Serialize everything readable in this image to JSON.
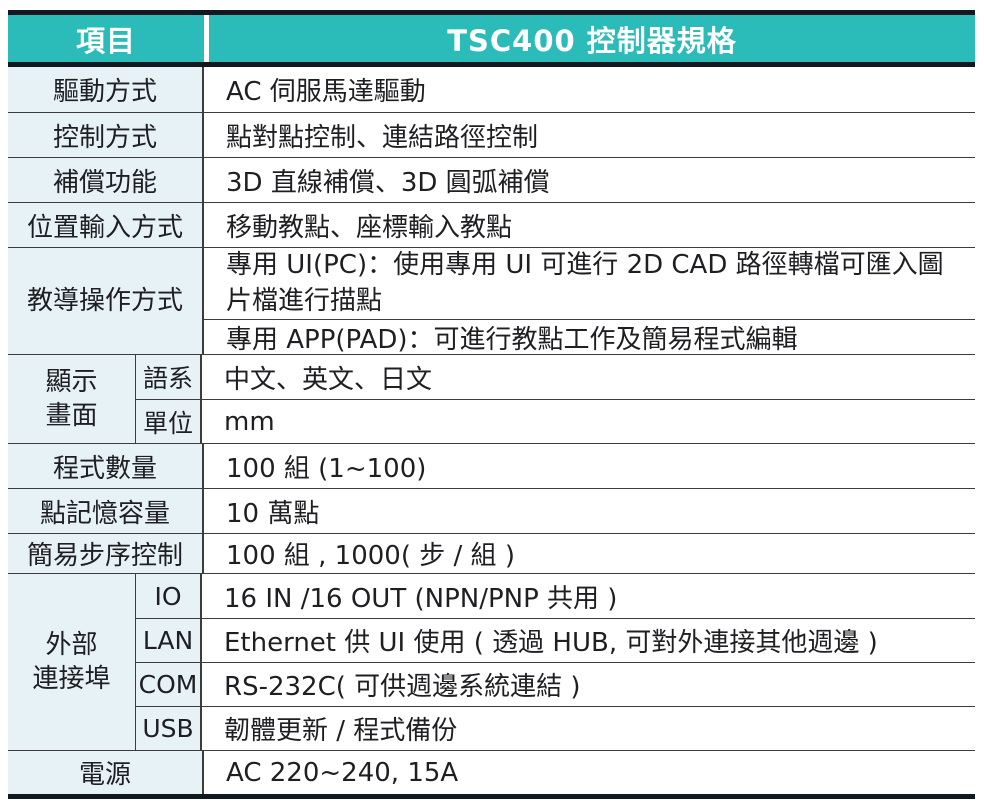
{
  "table": {
    "header": {
      "items_label": "項目",
      "title": "TSC400 控制器規格"
    },
    "rows": {
      "drive": {
        "label": "驅動方式",
        "value": "AC 伺服馬達驅動"
      },
      "control": {
        "label": "控制方式",
        "value": "點對點控制、連結路徑控制"
      },
      "compensation": {
        "label": "補償功能",
        "value": "3D 直線補償、3D 圓弧補償"
      },
      "position_input": {
        "label": "位置輸入方式",
        "value": "移動教點、座標輸入教點"
      },
      "teaching": {
        "label": "教導操作方式",
        "value_pc": "專用 UI(PC)：使用專用 UI 可進行 2D CAD 路徑轉檔可匯入圖片檔進行描點",
        "value_pad": "專用 APP(PAD)：可進行教點工作及簡易程式編輯"
      },
      "display": {
        "label_line1": "顯示",
        "label_line2": "畫面",
        "language": {
          "sublabel": "語系",
          "value": "中文、英文、日文"
        },
        "unit": {
          "sublabel": "單位",
          "value": "mm"
        }
      },
      "program_count": {
        "label": "程式數量",
        "value": "100 組 (1~100)"
      },
      "point_memory": {
        "label": "點記憶容量",
        "value": "10 萬點"
      },
      "step_control": {
        "label": "簡易步序控制",
        "value": "100 組 , 1000( 步 / 組 )"
      },
      "ports": {
        "label_line1": "外部",
        "label_line2": "連接埠",
        "io": {
          "sublabel": "IO",
          "value": "16 IN /16 OUT (NPN/PNP 共用 )"
        },
        "lan": {
          "sublabel": "LAN",
          "value": "Ethernet 供 UI 使用 ( 透過 HUB, 可對外連接其他週邊 )"
        },
        "com": {
          "sublabel": "COM",
          "value": "RS-232C( 可供週邊系統連結 )"
        },
        "usb": {
          "sublabel": "USB",
          "value": "韌體更新 / 程式備份"
        }
      },
      "power": {
        "label": "電源",
        "value": "AC 220~240, 15A"
      }
    }
  },
  "colors": {
    "header_teal": "#2bbcb9",
    "thick_border": "#101820",
    "row_line": "#3c3c3c",
    "label_cell_bg": "#e6f2f5",
    "header_text": "#ffffff",
    "body_text": "#1f1e22"
  }
}
